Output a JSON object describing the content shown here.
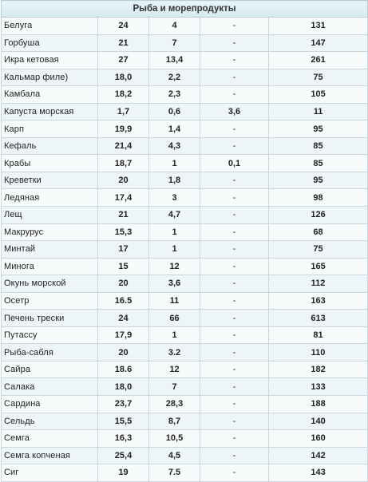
{
  "table": {
    "title": "Рыба и морепродукты",
    "rows": [
      {
        "name": "Белуга",
        "protein": "24",
        "fat": "4",
        "carbs": "-",
        "kcal": "131"
      },
      {
        "name": "Горбуша",
        "protein": "21",
        "fat": "7",
        "carbs": "-",
        "kcal": "147"
      },
      {
        "name": "Икра кетовая",
        "protein": "27",
        "fat": "13,4",
        "carbs": "-",
        "kcal": "261"
      },
      {
        "name": "Кальмар филе)",
        "protein": "18,0",
        "fat": "2,2",
        "carbs": "-",
        "kcal": "75"
      },
      {
        "name": "Камбала",
        "protein": "18,2",
        "fat": "2,3",
        "carbs": "-",
        "kcal": "105"
      },
      {
        "name": "Капуста морская",
        "protein": "1,7",
        "fat": "0,6",
        "carbs": "3,6",
        "kcal": "11"
      },
      {
        "name": "Карп",
        "protein": "19,9",
        "fat": "1,4",
        "carbs": "-",
        "kcal": "95"
      },
      {
        "name": "Кефаль",
        "protein": "21,4",
        "fat": "4,3",
        "carbs": "-",
        "kcal": "85"
      },
      {
        "name": "Крабы",
        "protein": "18,7",
        "fat": "1",
        "carbs": "0,1",
        "kcal": "85"
      },
      {
        "name": "Креветки",
        "protein": "20",
        "fat": "1,8",
        "carbs": "-",
        "kcal": "95"
      },
      {
        "name": "Ледяная",
        "protein": "17,4",
        "fat": "3",
        "carbs": "-",
        "kcal": "98"
      },
      {
        "name": "Лещ",
        "protein": "21",
        "fat": "4,7",
        "carbs": "-",
        "kcal": "126"
      },
      {
        "name": "Макрурус",
        "protein": "15,3",
        "fat": "1",
        "carbs": "-",
        "kcal": "68"
      },
      {
        "name": "Минтай",
        "protein": "17",
        "fat": "1",
        "carbs": "-",
        "kcal": "75"
      },
      {
        "name": "Минога",
        "protein": "15",
        "fat": "12",
        "carbs": "-",
        "kcal": "165"
      },
      {
        "name": "Окунь морской",
        "protein": "20",
        "fat": "3,6",
        "carbs": "-",
        "kcal": "112"
      },
      {
        "name": "Осетр",
        "protein": "16.5",
        "fat": "11",
        "carbs": "-",
        "kcal": "163"
      },
      {
        "name": "Печень трески",
        "protein": "24",
        "fat": "66",
        "carbs": "-",
        "kcal": "613"
      },
      {
        "name": "Путассу",
        "protein": "17,9",
        "fat": "1",
        "carbs": "-",
        "kcal": "81"
      },
      {
        "name": "Рыба-сабля",
        "protein": "20",
        "fat": "3.2",
        "carbs": "-",
        "kcal": "110"
      },
      {
        "name": "Сайра",
        "protein": "18.6",
        "fat": "12",
        "carbs": "-",
        "kcal": "182"
      },
      {
        "name": "Салака",
        "protein": "18,0",
        "fat": "7",
        "carbs": "-",
        "kcal": "133"
      },
      {
        "name": "Сардина",
        "protein": "23,7",
        "fat": "28,3",
        "carbs": "-",
        "kcal": "188"
      },
      {
        "name": "Сельдь",
        "protein": "15,5",
        "fat": "8,7",
        "carbs": "-",
        "kcal": "140"
      },
      {
        "name": "Семга",
        "protein": "16,3",
        "fat": "10,5",
        "carbs": "-",
        "kcal": "160"
      },
      {
        "name": "Семга копченая",
        "protein": "25,4",
        "fat": "4,5",
        "carbs": "-",
        "kcal": "142"
      },
      {
        "name": "Сиг",
        "protein": "19",
        "fat": "7.5",
        "carbs": "-",
        "kcal": "143"
      }
    ]
  }
}
